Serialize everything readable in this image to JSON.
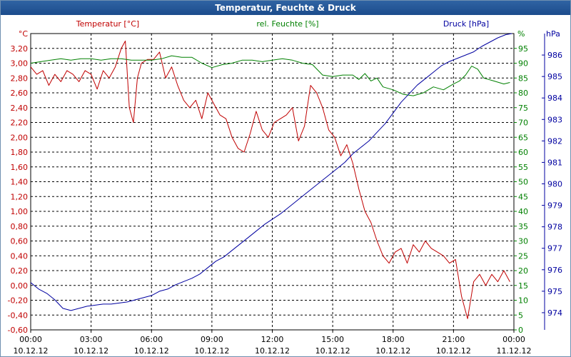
{
  "window": {
    "title": "Temperatur, Feuchte & Druck"
  },
  "chart_data": {
    "type": "line",
    "title": "Temperatur, Feuchte & Druck",
    "grid": true,
    "x_ticks": [
      {
        "time": "00:00",
        "date": "10.12.12"
      },
      {
        "time": "03:00",
        "date": "10.12.12"
      },
      {
        "time": "06:00",
        "date": "10.12.12"
      },
      {
        "time": "09:00",
        "date": "10.12.12"
      },
      {
        "time": "12:00",
        "date": "10.12.12"
      },
      {
        "time": "15:00",
        "date": "10.12.12"
      },
      {
        "time": "18:00",
        "date": "10.12.12"
      },
      {
        "time": "21:00",
        "date": "10.12.12"
      },
      {
        "time": "00:00",
        "date": "11.12.12"
      }
    ],
    "x_range_hours": [
      0,
      24
    ],
    "axes": {
      "temperature": {
        "label": "Temperatur [°C]",
        "unit": "°C",
        "color": "#c00000",
        "range": [
          -0.6,
          3.4
        ],
        "ticks": [
          "-0,60",
          "-0,40",
          "-0,20",
          "0,00",
          "0,20",
          "0,40",
          "0,60",
          "0,80",
          "1,00",
          "1,20",
          "1,40",
          "1,60",
          "1,80",
          "2,00",
          "2,20",
          "2,40",
          "2,60",
          "2,80",
          "3,00",
          "3,20"
        ]
      },
      "humidity": {
        "label": "rel. Feuchte [%]",
        "unit": "%",
        "color": "#008000",
        "range": [
          0,
          100
        ],
        "ticks": [
          "0",
          "5",
          "10",
          "15",
          "20",
          "25",
          "30",
          "35",
          "40",
          "45",
          "50",
          "55",
          "60",
          "65",
          "70",
          "75",
          "80",
          "85",
          "90",
          "95"
        ]
      },
      "pressure": {
        "label": "Druck [hPa]",
        "unit": "hPa",
        "color": "#0000a0",
        "range": [
          973.2,
          987.0
        ],
        "ticks": [
          "974",
          "975",
          "976",
          "977",
          "978",
          "979",
          "980",
          "981",
          "982",
          "983",
          "984",
          "985",
          "986"
        ]
      }
    },
    "series": [
      {
        "name": "Temperatur",
        "axis": "temperature",
        "color": "#c00000",
        "x": [
          0,
          0.3,
          0.6,
          0.9,
          1.2,
          1.5,
          1.8,
          2.1,
          2.4,
          2.7,
          3,
          3.3,
          3.6,
          3.9,
          4.2,
          4.5,
          4.7,
          4.9,
          5.1,
          5.3,
          5.5,
          5.8,
          6.1,
          6.4,
          6.7,
          7,
          7.3,
          7.6,
          7.9,
          8.2,
          8.5,
          8.8,
          9.1,
          9.4,
          9.7,
          10,
          10.3,
          10.6,
          10.9,
          11.2,
          11.5,
          11.8,
          12.1,
          12.4,
          12.7,
          13,
          13.3,
          13.6,
          13.9,
          14.2,
          14.5,
          14.8,
          15.1,
          15.4,
          15.7,
          16,
          16.3,
          16.6,
          16.9,
          17.2,
          17.5,
          17.8,
          18.1,
          18.4,
          18.7,
          19,
          19.3,
          19.6,
          19.9,
          20.2,
          20.5,
          20.8,
          21.1,
          21.4,
          21.7,
          22,
          22.3,
          22.6,
          22.9,
          23.2,
          23.5,
          23.8
        ],
        "values": [
          2.95,
          2.85,
          2.9,
          2.7,
          2.85,
          2.75,
          2.9,
          2.85,
          2.75,
          2.9,
          2.85,
          2.65,
          2.9,
          2.8,
          2.95,
          3.2,
          3.3,
          2.4,
          2.2,
          2.8,
          3.0,
          3.05,
          3.05,
          3.15,
          2.8,
          2.95,
          2.7,
          2.5,
          2.4,
          2.5,
          2.25,
          2.6,
          2.45,
          2.3,
          2.25,
          2.0,
          1.85,
          1.8,
          2.05,
          2.35,
          2.1,
          2.0,
          2.2,
          2.25,
          2.3,
          2.4,
          1.95,
          2.15,
          2.7,
          2.6,
          2.4,
          2.1,
          2.0,
          1.75,
          1.9,
          1.65,
          1.3,
          1.0,
          0.85,
          0.6,
          0.4,
          0.3,
          0.45,
          0.5,
          0.3,
          0.55,
          0.45,
          0.6,
          0.5,
          0.45,
          0.4,
          0.3,
          0.35,
          -0.15,
          -0.45,
          0.05,
          0.15,
          0.0,
          0.15,
          0.05,
          0.2,
          0.05
        ]
      },
      {
        "name": "rel. Feuchte",
        "axis": "humidity",
        "color": "#008000",
        "x": [
          0,
          0.5,
          1,
          1.5,
          2,
          2.5,
          3,
          3.5,
          4,
          4.5,
          5,
          5.5,
          6,
          6.5,
          7,
          7.5,
          8,
          8.5,
          9,
          9.5,
          10,
          10.5,
          11,
          11.5,
          12,
          12.5,
          13,
          13.5,
          14,
          14.5,
          15,
          15.5,
          16,
          16.3,
          16.6,
          16.9,
          17.2,
          17.5,
          18,
          18.5,
          19,
          19.5,
          20,
          20.5,
          21,
          21.3,
          21.6,
          21.9,
          22.2,
          22.5,
          23,
          23.5,
          23.8
        ],
        "values": [
          90,
          90.5,
          91,
          91.5,
          91,
          91.5,
          91.5,
          91,
          91.5,
          91.5,
          91,
          91,
          91,
          91.5,
          92.5,
          92,
          92,
          90,
          88.5,
          89.5,
          90,
          91,
          91,
          90.5,
          91,
          91.5,
          91,
          90,
          89.5,
          86,
          85.5,
          86,
          86,
          84.5,
          86.5,
          84,
          85,
          82,
          81,
          79.5,
          79,
          80,
          82,
          81,
          83,
          84,
          86,
          89,
          88,
          85,
          84,
          83,
          83.5
        ]
      },
      {
        "name": "Druck",
        "axis": "pressure",
        "color": "#0000a0",
        "x": [
          0,
          0.4,
          0.8,
          1.2,
          1.6,
          2,
          2.4,
          2.8,
          3.2,
          3.6,
          4,
          4.4,
          4.8,
          5.2,
          5.6,
          6,
          6.4,
          6.8,
          7.2,
          7.6,
          8,
          8.4,
          8.8,
          9.2,
          9.6,
          10,
          10.4,
          10.8,
          11.2,
          11.6,
          12,
          12.4,
          12.8,
          13.2,
          13.6,
          14,
          14.4,
          14.8,
          15.2,
          15.6,
          16,
          16.4,
          16.8,
          17.2,
          17.6,
          18,
          18.4,
          18.8,
          19.2,
          19.6,
          20,
          20.4,
          20.8,
          21.2,
          21.6,
          22,
          22.4,
          22.8,
          23.2,
          23.6,
          23.9
        ],
        "values": [
          975.4,
          975.1,
          974.9,
          974.6,
          974.2,
          974.1,
          974.2,
          974.3,
          974.35,
          974.4,
          974.4,
          974.45,
          974.5,
          974.6,
          974.7,
          974.8,
          975.0,
          975.1,
          975.3,
          975.45,
          975.6,
          975.8,
          976.1,
          976.4,
          976.6,
          976.9,
          977.2,
          977.5,
          977.8,
          978.1,
          978.35,
          978.6,
          978.9,
          979.2,
          979.5,
          979.8,
          980.1,
          980.4,
          980.7,
          981.0,
          981.4,
          981.7,
          982.0,
          982.4,
          982.8,
          983.3,
          983.8,
          984.2,
          984.6,
          984.9,
          985.2,
          985.5,
          985.7,
          985.85,
          986.0,
          986.15,
          986.4,
          986.6,
          986.8,
          986.95,
          987.0
        ]
      }
    ]
  }
}
